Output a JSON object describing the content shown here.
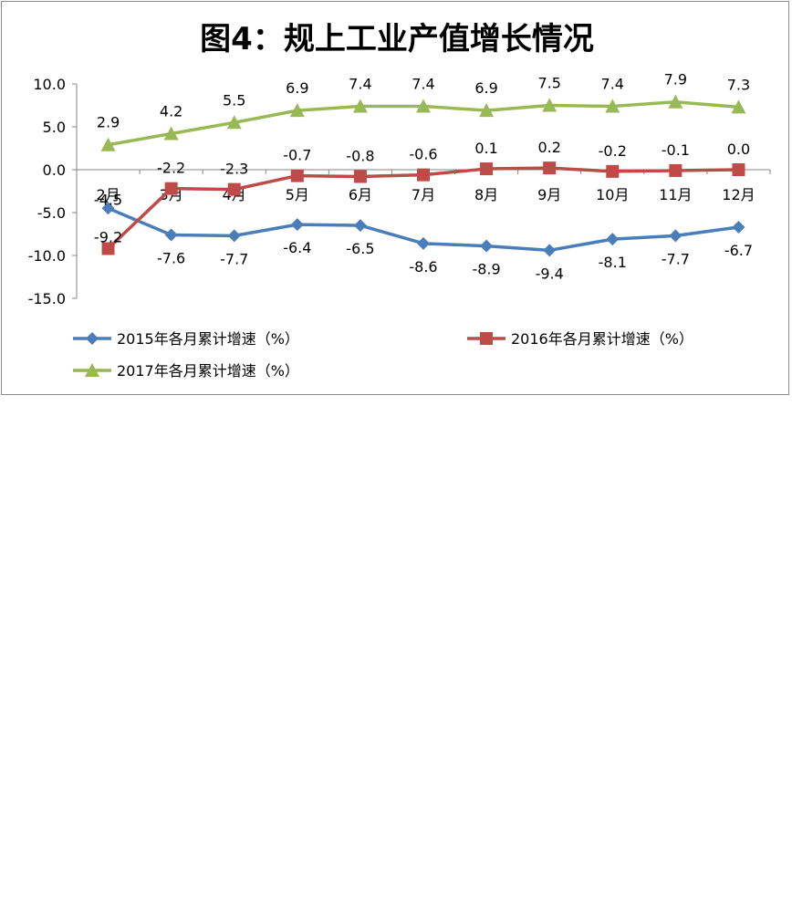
{
  "chart_data": {
    "type": "line",
    "title": "图4：规上工业产值增长情况",
    "categories": [
      "2月",
      "3月",
      "4月",
      "5月",
      "6月",
      "7月",
      "8月",
      "9月",
      "10月",
      "11月",
      "12月"
    ],
    "ylim": [
      -15.0,
      10.0
    ],
    "yticks": [
      "10.0",
      "5.0",
      "0.0",
      "-5.0",
      "-10.0",
      "-15.0"
    ],
    "grid": false,
    "legend_position": "bottom",
    "series": [
      {
        "name": "2015年各月累计增速（%）",
        "color": "#4a7ebb",
        "marker": "diamond",
        "values": [
          -4.5,
          -7.6,
          -7.7,
          -6.4,
          -6.5,
          -8.6,
          -8.9,
          -9.4,
          -8.1,
          -7.7,
          -6.7
        ],
        "labels": [
          "-4.5",
          "-7.6",
          "-7.7",
          "-6.4",
          "-6.5",
          "-8.6",
          "-8.9",
          "-9.4",
          "-8.1",
          "-7.7",
          "-6.7"
        ]
      },
      {
        "name": "2016年各月累计增速（%）",
        "color": "#be4b48",
        "marker": "square",
        "values": [
          -9.2,
          -2.2,
          -2.3,
          -0.7,
          -0.8,
          -0.6,
          0.1,
          0.2,
          -0.2,
          -0.1,
          0.0
        ],
        "labels": [
          "-9.2",
          "-2.2",
          "-2.3",
          "-0.7",
          "-0.8",
          "-0.6",
          "0.1",
          "0.2",
          "-0.2",
          "-0.1",
          "0.0"
        ]
      },
      {
        "name": "2017年各月累计增速（%）",
        "color": "#98b954",
        "marker": "triangle",
        "values": [
          2.9,
          4.2,
          5.5,
          6.9,
          7.4,
          7.4,
          6.9,
          7.5,
          7.4,
          7.9,
          7.3
        ],
        "labels": [
          "2.9",
          "4.2",
          "5.5",
          "6.9",
          "7.4",
          "7.4",
          "6.9",
          "7.5",
          "7.4",
          "7.9",
          "7.3"
        ]
      }
    ]
  }
}
